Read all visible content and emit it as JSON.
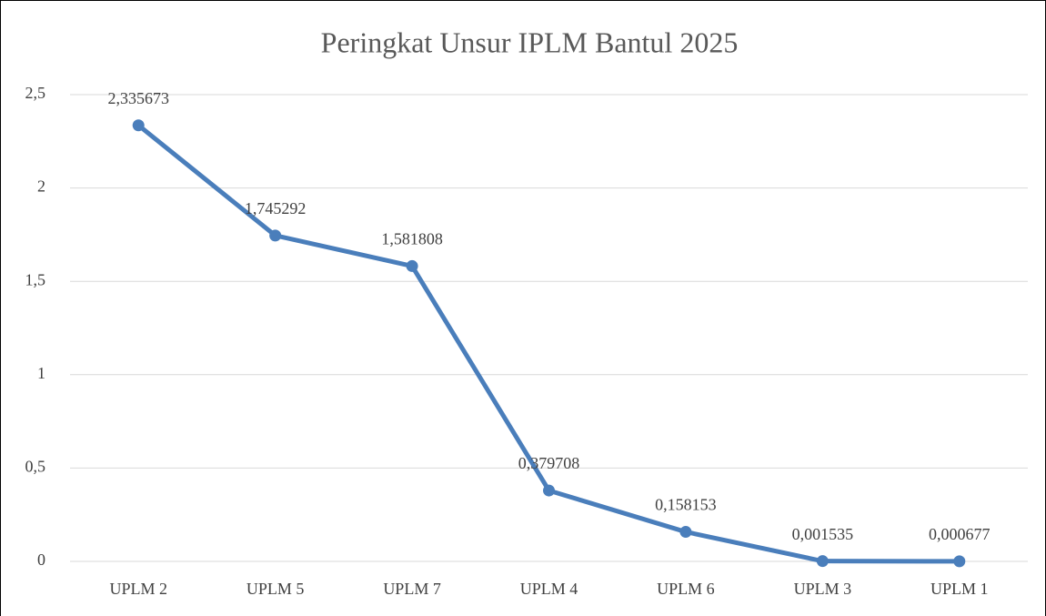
{
  "chart_data": {
    "type": "line",
    "title": "Peringkat Unsur IPLM Bantul 2025",
    "categories": [
      "UPLM 2",
      "UPLM 5",
      "UPLM 7",
      "UPLM 4",
      "UPLM 6",
      "UPLM 3",
      "UPLM 1"
    ],
    "values": [
      2.335673,
      1.745292,
      1.581808,
      0.379708,
      0.158153,
      0.001535,
      0.000677
    ],
    "value_labels": [
      "2,335673",
      "1,745292",
      "1,581808",
      "0,379708",
      "0,158153",
      "0,001535",
      "0,000677"
    ],
    "color": "#4a7ebb",
    "ylim": [
      0,
      2.5
    ],
    "yticks": [
      0,
      {
        "value": 0.5,
        "label": "0,5"
      },
      1,
      {
        "value": 1.5,
        "label": "1,5"
      },
      2,
      {
        "value": 2.5,
        "label": "2,5"
      }
    ],
    "grid": true
  }
}
